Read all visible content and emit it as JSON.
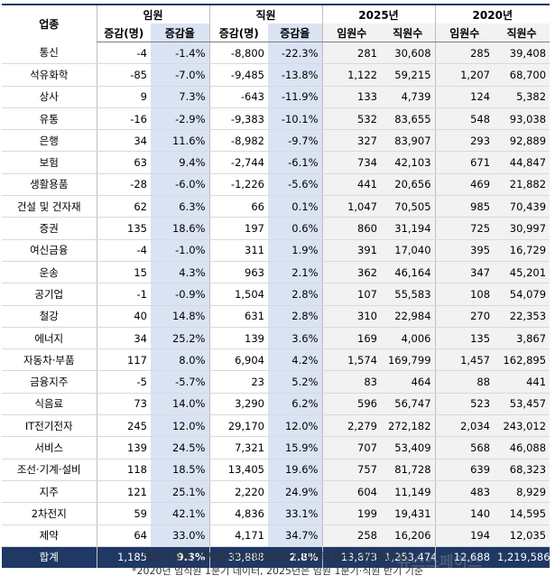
{
  "table": {
    "group_headers": [
      "업종",
      "임원",
      "직원",
      "2025년",
      "2020년"
    ],
    "sub_headers": [
      "증감(명)",
      "증감율",
      "증감(명)",
      "증감율",
      "임원수",
      "직원수",
      "임원수",
      "직원수"
    ],
    "rows": [
      [
        "통신",
        "-4",
        "-1.4%",
        "-8,800",
        "-22.3%",
        "281",
        "30,608",
        "285",
        "39,408"
      ],
      [
        "석유화학",
        "-85",
        "-7.0%",
        "-9,485",
        "-13.8%",
        "1,122",
        "59,215",
        "1,207",
        "68,700"
      ],
      [
        "상사",
        "9",
        "7.3%",
        "-643",
        "-11.9%",
        "133",
        "4,739",
        "124",
        "5,382"
      ],
      [
        "유통",
        "-16",
        "-2.9%",
        "-9,383",
        "-10.1%",
        "532",
        "83,655",
        "548",
        "93,038"
      ],
      [
        "은행",
        "34",
        "11.6%",
        "-8,982",
        "-9.7%",
        "327",
        "83,907",
        "293",
        "92,889"
      ],
      [
        "보험",
        "63",
        "9.4%",
        "-2,744",
        "-6.1%",
        "734",
        "42,103",
        "671",
        "44,847"
      ],
      [
        "생활용품",
        "-28",
        "-6.0%",
        "-1,226",
        "-5.6%",
        "441",
        "20,656",
        "469",
        "21,882"
      ],
      [
        "건설 및 건자재",
        "62",
        "6.3%",
        "66",
        "0.1%",
        "1,047",
        "70,505",
        "985",
        "70,439"
      ],
      [
        "증권",
        "135",
        "18.6%",
        "197",
        "0.6%",
        "860",
        "31,194",
        "725",
        "30,997"
      ],
      [
        "여신금융",
        "-4",
        "-1.0%",
        "311",
        "1.9%",
        "391",
        "17,040",
        "395",
        "16,729"
      ],
      [
        "운송",
        "15",
        "4.3%",
        "963",
        "2.1%",
        "362",
        "46,164",
        "347",
        "45,201"
      ],
      [
        "공기업",
        "-1",
        "-0.9%",
        "1,504",
        "2.8%",
        "107",
        "55,583",
        "108",
        "54,079"
      ],
      [
        "철강",
        "40",
        "14.8%",
        "631",
        "2.8%",
        "310",
        "22,984",
        "270",
        "22,353"
      ],
      [
        "에너지",
        "34",
        "25.2%",
        "139",
        "3.6%",
        "169",
        "4,006",
        "135",
        "3,867"
      ],
      [
        "자동차·부품",
        "117",
        "8.0%",
        "6,904",
        "4.2%",
        "1,574",
        "169,799",
        "1,457",
        "162,895"
      ],
      [
        "금융지주",
        "-5",
        "-5.7%",
        "23",
        "5.2%",
        "83",
        "464",
        "88",
        "441"
      ],
      [
        "식음료",
        "73",
        "14.0%",
        "3,290",
        "6.2%",
        "596",
        "56,747",
        "523",
        "53,457"
      ],
      [
        "IT전기전자",
        "245",
        "12.0%",
        "29,170",
        "12.0%",
        "2,279",
        "272,182",
        "2,034",
        "243,012"
      ],
      [
        "서비스",
        "139",
        "24.5%",
        "7,321",
        "15.9%",
        "707",
        "53,409",
        "568",
        "46,088"
      ],
      [
        "조선·기계·설비",
        "118",
        "18.5%",
        "13,405",
        "19.6%",
        "757",
        "81,728",
        "639",
        "68,323"
      ],
      [
        "지주",
        "121",
        "25.1%",
        "2,220",
        "24.9%",
        "604",
        "11,149",
        "483",
        "8,929"
      ],
      [
        "2차전지",
        "59",
        "42.1%",
        "4,836",
        "33.1%",
        "199",
        "19,431",
        "140",
        "14,595"
      ],
      [
        "제약",
        "64",
        "33.0%",
        "4,171",
        "34.7%",
        "258",
        "16,206",
        "194",
        "12,035"
      ]
    ],
    "total": [
      "합계",
      "1,185",
      "9.3%",
      "33,888",
      "2.8%",
      "13,873",
      "1,253,474",
      "12,688",
      "1,219,586"
    ]
  },
  "footer": {
    "source": "데이터 출처: 전자공시시스템(DART), 데이터 분석: 리더스인덱스",
    "note": "*2020년 임직원 1분기 데이터, 2025년은 임원 1분기·직원 반기 기준",
    "watermark": "뉴스스페이스"
  }
}
